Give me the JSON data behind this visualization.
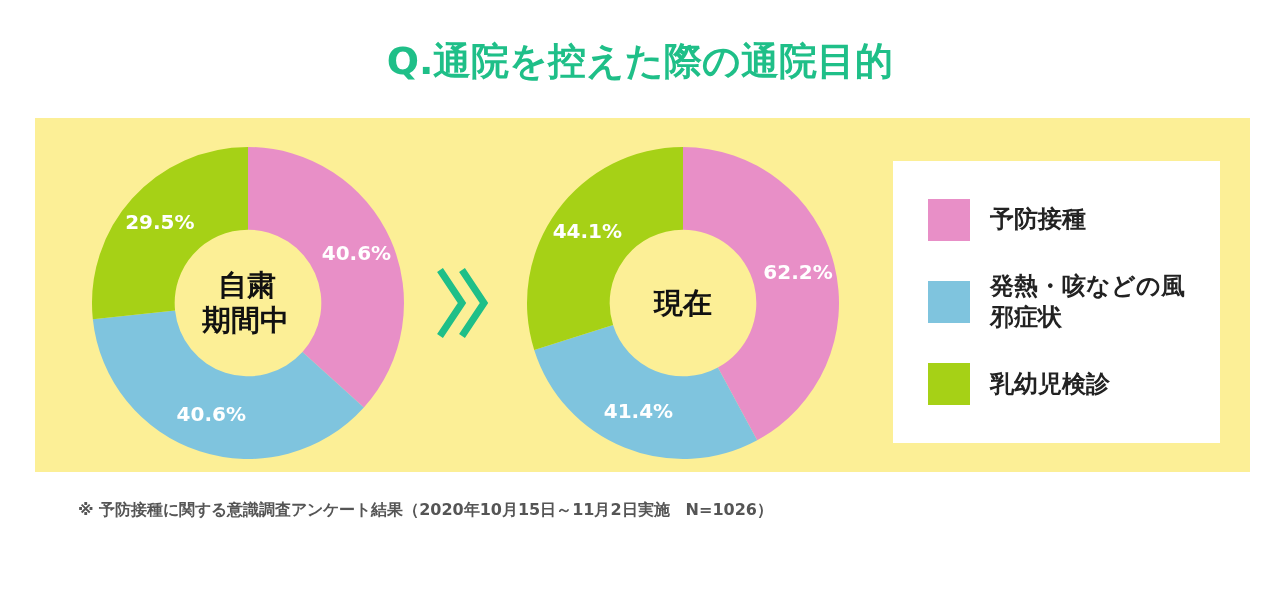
{
  "chart_data": {
    "type": "donut",
    "title": "Q.通院を控えた際の通院目的",
    "categories": [
      "予防接種",
      "発熱・咳などの風邪症状",
      "乳幼児検診"
    ],
    "colors": [
      "#e88fc7",
      "#7fc4de",
      "#a6d116"
    ],
    "series": [
      {
        "name": "自粛期間中",
        "values": [
          40.6,
          40.6,
          29.5
        ],
        "value_labels": [
          "40.6%",
          "40.6%",
          "29.5%"
        ]
      },
      {
        "name": "現在",
        "values": [
          62.2,
          41.4,
          44.1
        ],
        "value_labels": [
          "62.2%",
          "41.4%",
          "44.1%"
        ]
      }
    ],
    "annotations": [
      "※ 予防接種に関する意識調査アンケート結果（2020年10月15日～11月2日実施　N=1026）"
    ],
    "legend": "right"
  }
}
